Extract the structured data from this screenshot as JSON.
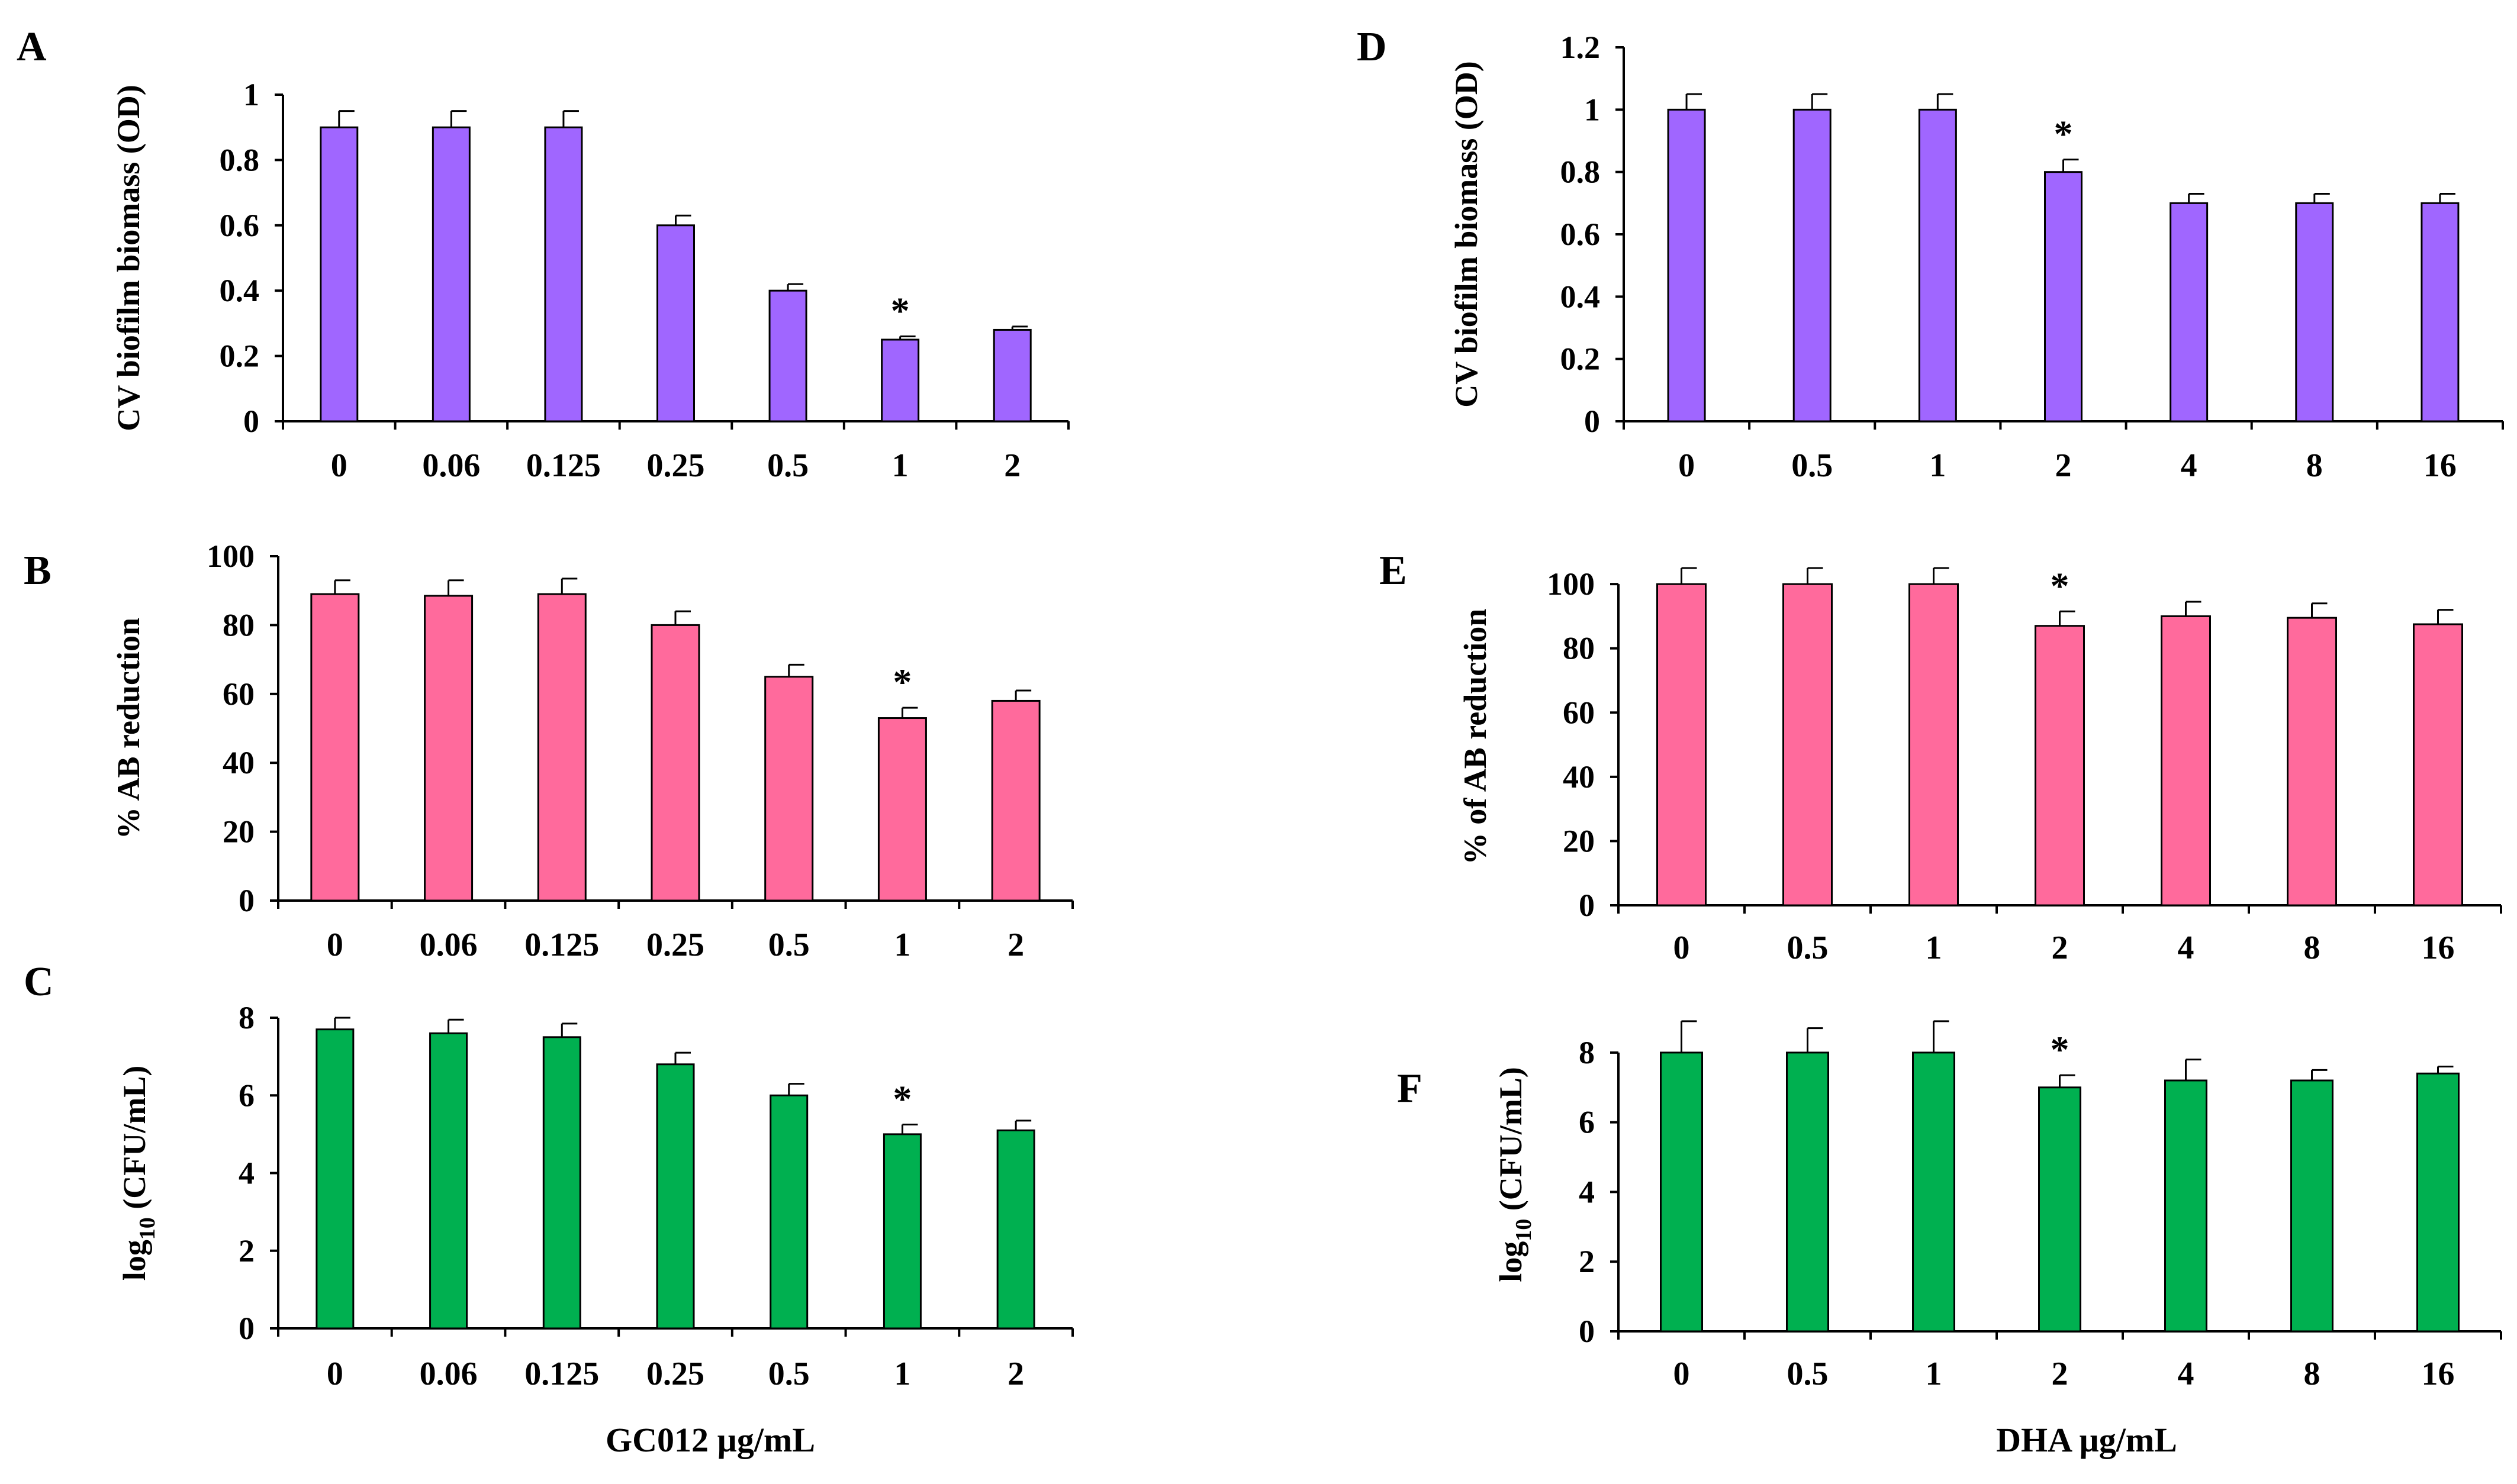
{
  "colors": {
    "purple": "#A066FF",
    "pink": "#FF6A9C",
    "green": "#00B050",
    "axis": "#000000"
  },
  "xaxis_titles": {
    "left": "GC012 µg/mL",
    "right": "DHA µg/mL"
  },
  "chart_data": [
    {
      "id": "A",
      "letter": "A",
      "type": "bar",
      "color": "purple",
      "ylabel": "CV biofilm biomass (OD)",
      "ylabel_sub": "",
      "categories": [
        "0",
        "0.06",
        "0.125",
        "0.25",
        "0.5",
        "1",
        "2"
      ],
      "values": [
        0.9,
        0.9,
        0.9,
        0.6,
        0.4,
        0.25,
        0.28
      ],
      "errors": [
        0.05,
        0.05,
        0.05,
        0.03,
        0.02,
        0.01,
        0.01
      ],
      "significant": [
        "",
        "",
        "",
        "",
        "",
        "*",
        ""
      ],
      "ylim": [
        0,
        1
      ],
      "yticks": [
        "0",
        "0.2",
        "0.4",
        "0.6",
        "0.8",
        "1"
      ]
    },
    {
      "id": "B",
      "letter": "B",
      "type": "bar",
      "color": "pink",
      "ylabel": "% AB reduction",
      "ylabel_sub": "",
      "categories": [
        "0",
        "0.06",
        "0.125",
        "0.25",
        "0.5",
        "1",
        "2"
      ],
      "values": [
        89,
        88.5,
        89,
        80,
        65,
        53,
        58
      ],
      "errors": [
        4,
        4.5,
        4.5,
        4,
        3.5,
        3,
        3
      ],
      "significant": [
        "",
        "",
        "",
        "",
        "",
        "*",
        ""
      ],
      "ylim": [
        0,
        100
      ],
      "yticks": [
        "0",
        "20",
        "40",
        "60",
        "80",
        "100"
      ]
    },
    {
      "id": "C",
      "letter": "C",
      "type": "bar",
      "color": "green",
      "ylabel": "log",
      "ylabel_sub": "10",
      "ylabel_rest": " (CFU/mL)",
      "categories": [
        "0",
        "0.06",
        "0.125",
        "0.25",
        "0.5",
        "1",
        "2"
      ],
      "values": [
        7.7,
        7.6,
        7.5,
        6.8,
        6.0,
        5.0,
        5.1
      ],
      "errors": [
        0.3,
        0.35,
        0.35,
        0.3,
        0.3,
        0.25,
        0.25
      ],
      "significant": [
        "",
        "",
        "",
        "",
        "",
        "*",
        ""
      ],
      "ylim": [
        0,
        8
      ],
      "yticks": [
        "0",
        "2",
        "4",
        "6",
        "8"
      ]
    },
    {
      "id": "D",
      "letter": "D",
      "type": "bar",
      "color": "purple",
      "ylabel": "CV biofilm biomass (OD)",
      "ylabel_sub": "",
      "categories": [
        "0",
        "0.5",
        "1",
        "2",
        "4",
        "8",
        "16"
      ],
      "values": [
        1.0,
        1.0,
        1.0,
        0.8,
        0.7,
        0.7,
        0.7
      ],
      "errors": [
        0.05,
        0.05,
        0.05,
        0.04,
        0.03,
        0.03,
        0.03
      ],
      "significant": [
        "",
        "",
        "",
        "*",
        "",
        "",
        ""
      ],
      "ylim": [
        0,
        1.2
      ],
      "yticks": [
        "0",
        "0.2",
        "0.4",
        "0.6",
        "0.8",
        "1",
        "1.2"
      ]
    },
    {
      "id": "E",
      "letter": "E",
      "type": "bar",
      "color": "pink",
      "ylabel": "% of AB reduction",
      "ylabel_sub": "",
      "categories": [
        "0",
        "0.5",
        "1",
        "2",
        "4",
        "8",
        "16"
      ],
      "values": [
        100,
        100,
        100,
        87,
        90,
        89.5,
        87.5
      ],
      "errors": [
        5,
        5,
        5,
        4.5,
        4.5,
        4.5,
        4.5
      ],
      "significant": [
        "",
        "",
        "",
        "*",
        "",
        "",
        ""
      ],
      "ylim": [
        0,
        105
      ],
      "yticks": [
        "0",
        "20",
        "40",
        "60",
        "80",
        "100"
      ]
    },
    {
      "id": "F",
      "letter": "F",
      "type": "bar",
      "color": "green",
      "ylabel": "log",
      "ylabel_sub": "10",
      "ylabel_rest": " (CFU/mL)",
      "categories": [
        "0",
        "0.5",
        "1",
        "2",
        "4",
        "8",
        "16"
      ],
      "values": [
        8.0,
        8.0,
        8.0,
        7.0,
        7.2,
        7.2,
        7.4
      ],
      "errors": [
        0.9,
        0.7,
        0.9,
        0.35,
        0.6,
        0.3,
        0.2
      ],
      "significant": [
        "",
        "",
        "",
        "*",
        "",
        "",
        ""
      ],
      "ylim": [
        0,
        9
      ],
      "yticks": [
        "0",
        "2",
        "4",
        "6",
        "8"
      ]
    }
  ]
}
